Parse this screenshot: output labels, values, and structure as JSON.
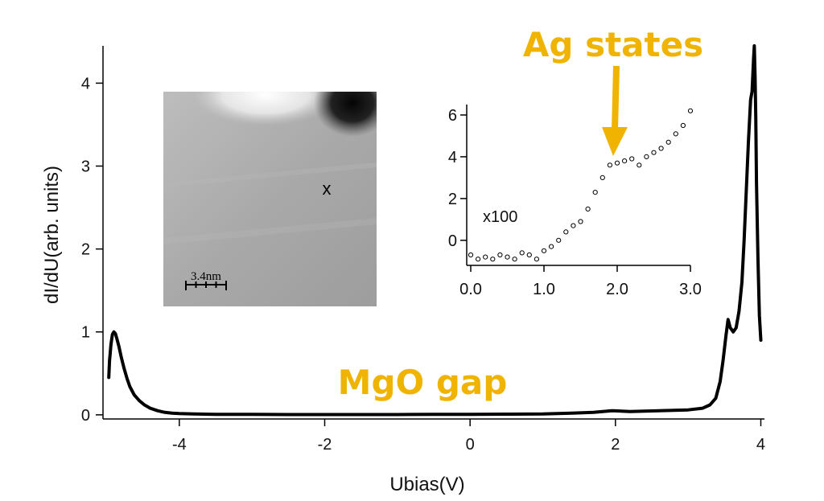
{
  "chart_data": [
    {
      "type": "line",
      "title": "",
      "xlabel": "Ubias(V)",
      "ylabel": "dI/dU(arb. units)",
      "xlim": [
        -5.05,
        4.05
      ],
      "ylim": [
        -0.05,
        4.45
      ],
      "xticks": [
        "-4",
        "-2",
        "0",
        "2",
        "4"
      ],
      "yticks": [
        "0",
        "1",
        "2",
        "3",
        "4"
      ],
      "grid": false,
      "series": [
        {
          "color": "#000000",
          "x": [
            -4.97,
            -4.96,
            -4.94,
            -4.92,
            -4.9,
            -4.88,
            -4.86,
            -4.83,
            -4.8,
            -4.76,
            -4.72,
            -4.68,
            -4.62,
            -4.55,
            -4.48,
            -4.4,
            -4.3,
            -4.2,
            -4.1,
            -4.0,
            -3.8,
            -3.5,
            -3.0,
            -2.5,
            -2.0,
            -1.5,
            -1.0,
            -0.5,
            0.0,
            0.5,
            1.0,
            1.4,
            1.7,
            1.95,
            2.2,
            2.6,
            3.0,
            3.2,
            3.3,
            3.38,
            3.44,
            3.48,
            3.52,
            3.55,
            3.58,
            3.62,
            3.66,
            3.7,
            3.74,
            3.77,
            3.8,
            3.83,
            3.86,
            3.88,
            3.9,
            3.91,
            3.92,
            3.93,
            3.94,
            3.96,
            3.98,
            4.0
          ],
          "y": [
            0.45,
            0.65,
            0.85,
            0.97,
            1.0,
            0.98,
            0.92,
            0.82,
            0.7,
            0.56,
            0.44,
            0.34,
            0.24,
            0.17,
            0.12,
            0.08,
            0.05,
            0.03,
            0.02,
            0.015,
            0.01,
            0.005,
            0.005,
            0.003,
            0.003,
            0.003,
            0.003,
            0.005,
            0.005,
            0.008,
            0.01,
            0.02,
            0.03,
            0.05,
            0.04,
            0.05,
            0.06,
            0.08,
            0.12,
            0.2,
            0.4,
            0.65,
            0.95,
            1.15,
            1.05,
            1.0,
            1.05,
            1.25,
            1.6,
            2.1,
            2.7,
            3.3,
            3.8,
            3.9,
            4.3,
            4.45,
            4.1,
            3.6,
            2.8,
            1.9,
            1.2,
            0.9
          ]
        }
      ],
      "annotations": [
        "MgO gap",
        "Ag states"
      ]
    },
    {
      "type": "scatter",
      "title": "",
      "xlabel": "",
      "ylabel": "",
      "xlim": [
        0,
        3.0
      ],
      "ylim": [
        -1.2,
        6.5
      ],
      "xticks": [
        "0.0",
        "1.0",
        "2.0",
        "3.0"
      ],
      "yticks": [
        "0",
        "2",
        "4",
        "6"
      ],
      "grid": false,
      "marker": "open-circle",
      "annotations": [
        "x100"
      ],
      "series": [
        {
          "color": "#000000",
          "x": [
            0.0,
            0.1,
            0.2,
            0.3,
            0.4,
            0.5,
            0.6,
            0.7,
            0.8,
            0.9,
            1.0,
            1.1,
            1.2,
            1.3,
            1.4,
            1.5,
            1.6,
            1.7,
            1.8,
            1.9,
            2.0,
            2.1,
            2.2,
            2.3,
            2.4,
            2.5,
            2.6,
            2.7,
            2.8,
            2.9,
            3.0
          ],
          "y": [
            -0.7,
            -0.9,
            -0.8,
            -0.9,
            -0.7,
            -0.8,
            -0.9,
            -0.6,
            -0.7,
            -0.9,
            -0.5,
            -0.3,
            0.0,
            0.4,
            0.7,
            0.9,
            1.5,
            2.3,
            3.0,
            3.6,
            3.7,
            3.8,
            3.9,
            3.6,
            4.0,
            4.2,
            4.4,
            4.7,
            5.1,
            5.5,
            6.2
          ]
        }
      ]
    }
  ],
  "labels": {
    "mgo_gap": "MgO gap",
    "ag_states": "Ag states",
    "inset_multiplier": "x100",
    "stm_marker": "x",
    "scale_bar": "3.4nm"
  },
  "colors": {
    "annotation": "#F0B400",
    "curve": "#000000",
    "axis": "#000000"
  }
}
